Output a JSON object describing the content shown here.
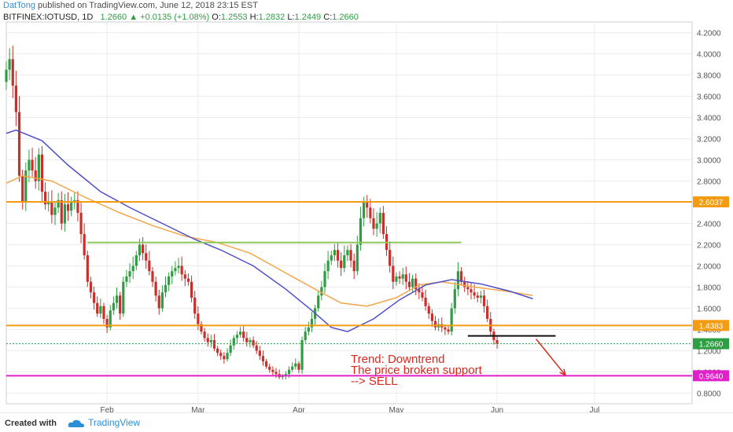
{
  "header": {
    "author": "DatTong",
    "published": "published on TradingView.com, June 12, 2018 23:15 EST",
    "symbol": "BITFINEX:IOTUSD, 1D",
    "last": "1.2660",
    "change": "+0.0135 (+1.08%)",
    "o_label": "O:",
    "o_value": "1.2553",
    "h_label": "H:",
    "h_value": "1.2832",
    "l_label": "L:",
    "l_value": "1.2449",
    "c_label": "C:",
    "c_value": "1.2660"
  },
  "footer": {
    "created_with": "Created with",
    "brand": "TradingView"
  },
  "chart_data": {
    "type": "candlestick",
    "ylim": [
      0.7,
      4.3
    ],
    "y_ticks": [
      0.8,
      1.0,
      1.2,
      1.4,
      1.6,
      1.8,
      2.0,
      2.2,
      2.4,
      2.6,
      2.8,
      3.0,
      3.2,
      3.4,
      3.6,
      3.8,
      4.0,
      4.2
    ],
    "y_tick_labels": [
      "0.8000",
      "1.0000",
      "1.2000",
      "1.4000",
      "1.6000",
      "1.8000",
      "2.0000",
      "2.2000",
      "2.4000",
      "2.6000",
      "2.8000",
      "3.0000",
      "3.2000",
      "3.4000",
      "3.6000",
      "3.8000",
      "4.0000",
      "4.2000"
    ],
    "x_start": "2018-01-01",
    "x_end": "2018-07-31",
    "x_ticks": [
      {
        "date": "2018-02-01",
        "label": "Feb"
      },
      {
        "date": "2018-03-01",
        "label": "Mar"
      },
      {
        "date": "2018-04-01",
        "label": "Apr"
      },
      {
        "date": "2018-05-01",
        "label": "May"
      },
      {
        "date": "2018-06-01",
        "label": "Jun"
      },
      {
        "date": "2018-07-01",
        "label": "Jul"
      }
    ],
    "grid": true,
    "colors": {
      "up": "#2e9e43",
      "down": "#c9302c",
      "ma_fast": "#f3a64a",
      "ma_slow": "#4f4fc8",
      "orange": "#f39c12",
      "green": "#8ec85b",
      "magenta": "#e020c8",
      "annotation": "#d9281f"
    },
    "horizontal_levels": [
      {
        "value": 2.6037,
        "label": "2.6037",
        "color": "#f39c12",
        "style": "solid"
      },
      {
        "value": 1.4383,
        "label": "1.4383",
        "color": "#f39c12",
        "style": "solid"
      },
      {
        "value": 0.964,
        "label": "0.9640",
        "color": "#e020c8",
        "style": "solid"
      },
      {
        "value": 1.266,
        "label": "1.2660",
        "color": "#2e9e43",
        "style": "dotted"
      }
    ],
    "trend_segments": [
      {
        "from": "2018-01-26",
        "to": "2018-05-21",
        "value": 2.22,
        "color": "#8ec85b"
      },
      {
        "from": "2018-05-23",
        "to": "2018-06-19",
        "value": 1.34,
        "color": "#111111"
      }
    ],
    "arrow": {
      "from_date": "2018-06-13",
      "from_value": 1.31,
      "to_date": "2018-06-22",
      "to_value": 0.97
    },
    "annotation": [
      "Trend: Downtrend",
      "The price broken support",
      "--> SELL"
    ],
    "ma_fast": [
      {
        "date": "2018-01-01",
        "value": 2.78
      },
      {
        "date": "2018-01-06",
        "value": 2.85
      },
      {
        "date": "2018-01-15",
        "value": 2.8
      },
      {
        "date": "2018-01-25",
        "value": 2.65
      },
      {
        "date": "2018-02-05",
        "value": 2.5
      },
      {
        "date": "2018-02-15",
        "value": 2.38
      },
      {
        "date": "2018-02-25",
        "value": 2.28
      },
      {
        "date": "2018-03-07",
        "value": 2.22
      },
      {
        "date": "2018-03-17",
        "value": 2.12
      },
      {
        "date": "2018-03-27",
        "value": 1.95
      },
      {
        "date": "2018-04-06",
        "value": 1.78
      },
      {
        "date": "2018-04-14",
        "value": 1.65
      },
      {
        "date": "2018-04-22",
        "value": 1.62
      },
      {
        "date": "2018-05-01",
        "value": 1.7
      },
      {
        "date": "2018-05-08",
        "value": 1.82
      },
      {
        "date": "2018-05-15",
        "value": 1.85
      },
      {
        "date": "2018-05-25",
        "value": 1.8
      },
      {
        "date": "2018-06-04",
        "value": 1.76
      },
      {
        "date": "2018-06-12",
        "value": 1.72
      }
    ],
    "ma_slow": [
      {
        "date": "2018-01-01",
        "value": 3.25
      },
      {
        "date": "2018-01-04",
        "value": 3.28
      },
      {
        "date": "2018-01-12",
        "value": 3.18
      },
      {
        "date": "2018-01-20",
        "value": 2.95
      },
      {
        "date": "2018-01-30",
        "value": 2.7
      },
      {
        "date": "2018-02-08",
        "value": 2.55
      },
      {
        "date": "2018-02-18",
        "value": 2.4
      },
      {
        "date": "2018-02-28",
        "value": 2.25
      },
      {
        "date": "2018-03-08",
        "value": 2.15
      },
      {
        "date": "2018-03-18",
        "value": 2.0
      },
      {
        "date": "2018-03-28",
        "value": 1.78
      },
      {
        "date": "2018-04-05",
        "value": 1.58
      },
      {
        "date": "2018-04-11",
        "value": 1.42
      },
      {
        "date": "2018-04-16",
        "value": 1.38
      },
      {
        "date": "2018-04-24",
        "value": 1.5
      },
      {
        "date": "2018-05-02",
        "value": 1.68
      },
      {
        "date": "2018-05-10",
        "value": 1.82
      },
      {
        "date": "2018-05-18",
        "value": 1.87
      },
      {
        "date": "2018-05-27",
        "value": 1.83
      },
      {
        "date": "2018-06-05",
        "value": 1.76
      },
      {
        "date": "2018-06-12",
        "value": 1.69
      }
    ],
    "candles_daily_closes_from_2018-01-01": [
      3.85,
      3.95,
      3.7,
      3.45,
      2.85,
      2.6,
      2.9,
      3.0,
      2.9,
      2.8,
      3.05,
      2.7,
      2.58,
      2.6,
      2.48,
      2.55,
      2.62,
      2.4,
      2.58,
      2.52,
      2.6,
      2.62,
      2.5,
      2.3,
      2.1,
      1.85,
      1.75,
      1.65,
      1.55,
      1.62,
      1.5,
      1.42,
      1.58,
      1.65,
      1.72,
      1.55,
      1.85,
      1.9,
      1.95,
      2.0,
      2.1,
      2.2,
      2.12,
      2.05,
      1.95,
      1.85,
      1.72,
      1.6,
      1.75,
      1.82,
      1.9,
      1.95,
      1.98,
      2.0,
      1.92,
      1.88,
      1.85,
      1.7,
      1.55,
      1.45,
      1.38,
      1.32,
      1.28,
      1.3,
      1.22,
      1.18,
      1.15,
      1.12,
      1.18,
      1.25,
      1.32,
      1.35,
      1.38,
      1.32,
      1.28,
      1.3,
      1.25,
      1.2,
      1.15,
      1.1,
      1.05,
      1.02,
      1.0,
      0.98,
      0.95,
      0.96,
      0.98,
      1.02,
      1.05,
      1.08,
      1.02,
      1.3,
      1.38,
      1.42,
      1.5,
      1.6,
      1.72,
      1.8,
      1.95,
      2.05,
      2.1,
      2.15,
      2.05,
      1.98,
      2.1,
      2.15,
      2.05,
      1.95,
      2.2,
      2.45,
      2.6,
      2.55,
      2.45,
      2.35,
      2.4,
      2.5,
      2.3,
      2.15,
      2.0,
      1.85,
      1.9,
      1.88,
      1.92,
      1.85,
      1.8,
      1.88,
      1.78,
      1.75,
      1.7,
      1.62,
      1.55,
      1.48,
      1.42,
      1.45,
      1.42,
      1.4,
      1.38,
      1.6,
      1.78,
      1.95,
      1.85,
      1.8,
      1.78,
      1.75,
      1.72,
      1.7,
      1.72,
      1.62,
      1.5,
      1.38,
      1.3,
      1.266
    ]
  }
}
